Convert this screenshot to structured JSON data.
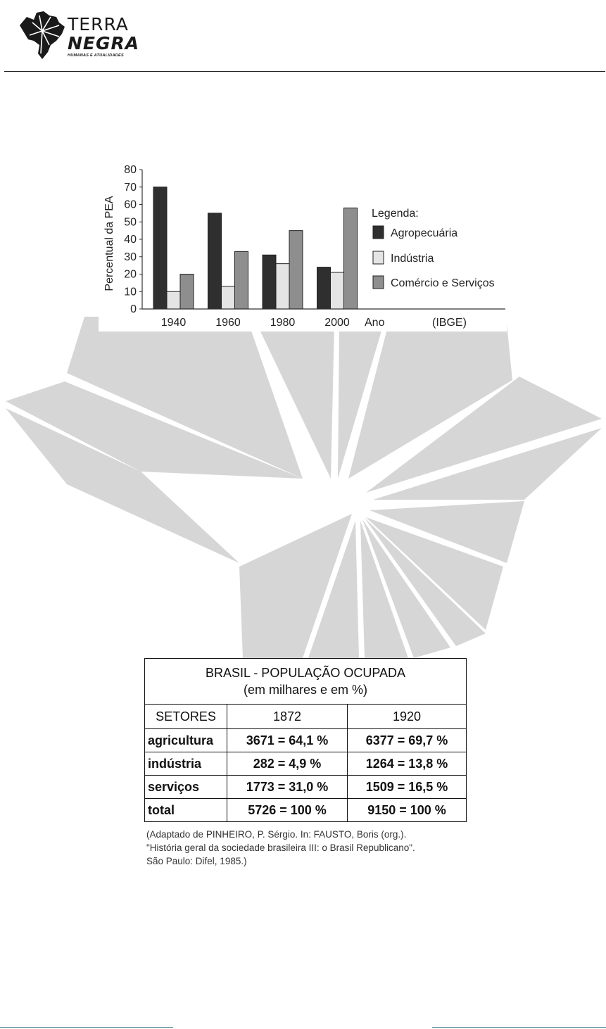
{
  "header": {
    "logo_line1": "TERRA",
    "logo_line2": "NEGRA",
    "logo_tagline": "HUMANAS E ATUALIDADES"
  },
  "chart_data": {
    "type": "bar",
    "categories": [
      "1940",
      "1960",
      "1980",
      "2000"
    ],
    "series": [
      {
        "name": "Agropecuária",
        "values": [
          70,
          55,
          31,
          24
        ],
        "color": "#2f2f2f"
      },
      {
        "name": "Indústria",
        "values": [
          10,
          13,
          26,
          21
        ],
        "color": "#e4e4e4"
      },
      {
        "name": "Comércio e Serviços",
        "values": [
          20,
          33,
          45,
          58
        ],
        "color": "#8e8e8e"
      }
    ],
    "ylabel": "Percentual da PEA",
    "xlabel": "Ano",
    "source": "(IBGE)",
    "legend_title": "Legenda:",
    "yticks": [
      "0",
      "10",
      "20",
      "30",
      "40",
      "50",
      "60",
      "70",
      "80"
    ],
    "ylim": [
      0,
      80
    ],
    "grid": false,
    "legend_position": "right"
  },
  "table": {
    "title_line1": "BRASIL - POPULAÇÃO OCUPADA",
    "title_line2": "(em milhares e em %)",
    "headers": [
      "SETORES",
      "1872",
      "1920"
    ],
    "rows": [
      {
        "sector": "agricultura",
        "v1872": "3671 = 64,1 %",
        "v1920": "6377 = 69,7 %"
      },
      {
        "sector": "indústria",
        "v1872": "282 = 4,9 %",
        "v1920": "1264 = 13,8 %"
      },
      {
        "sector": "serviços",
        "v1872": "1773 = 31,0 %",
        "v1920": "1509 = 16,5 %"
      },
      {
        "sector": "total",
        "v1872": "5726 = 100 %",
        "v1920": "9150 = 100 %"
      }
    ]
  },
  "source_note": {
    "line1": "(Adaptado de PINHEIRO, P. Sérgio. In: FAUSTO, Boris (org.).",
    "line2": "\"História geral da sociedade brasileira III: o Brasil Republicano\".",
    "line3": "São Paulo: Difel, 1985.)"
  }
}
